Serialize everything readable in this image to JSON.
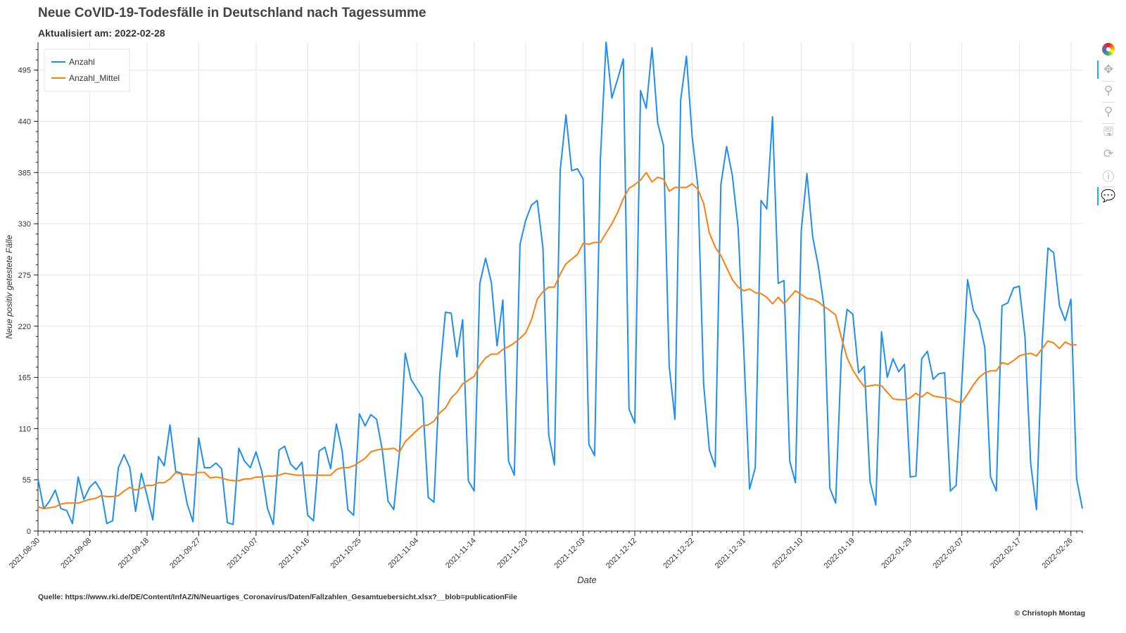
{
  "title": "Neue CoVID-19-Todesfälle in Deutschland nach Tagessumme",
  "subtitle": "Aktualisiert am: 2022-02-28",
  "source": "Quelle: https://www.rki.de/DE/Content/InfAZ/N/Neuartiges_Coronavirus/Daten/Fallzahlen_Gesamtuebersicht.xlsx?__blob=publicationFile",
  "credit": "© Christoph Montag",
  "toolbar": {
    "tools": [
      "bokeh-logo-icon",
      "pan-icon",
      "box-zoom-icon",
      "wheel-zoom-icon",
      "save-icon",
      "reset-icon",
      "help-icon",
      "hover-icon"
    ]
  },
  "chart_data": {
    "type": "line",
    "xlabel": "Date",
    "ylabel": "Neue positiv getestete Fälle",
    "x_start": "2021-08-30",
    "x_end": "2022-02-27",
    "xlim": [
      "2021-08-30",
      "2022-02-28"
    ],
    "ylim": [
      0,
      525
    ],
    "y_ticks": [
      0,
      55,
      110,
      165,
      220,
      275,
      330,
      385,
      440,
      495
    ],
    "x_ticks": [
      "2021-08-30",
      "2021-09-08",
      "2021-09-18",
      "2021-09-27",
      "2021-10-07",
      "2021-10-16",
      "2021-10-25",
      "2021-11-04",
      "2021-11-14",
      "2021-11-23",
      "2021-12-03",
      "2021-12-12",
      "2021-12-22",
      "2021-12-31",
      "2022-01-10",
      "2022-01-19",
      "2022-01-29",
      "2022-02-07",
      "2022-02-17",
      "2022-02-26"
    ],
    "grid": true,
    "legend_position": "top-left",
    "series": [
      {
        "name": "Anzahl",
        "color": "#1f8ef1",
        "values": [
          56,
          24,
          32,
          44,
          24,
          22,
          8,
          58,
          34,
          47,
          53,
          43,
          8,
          11,
          68,
          82,
          68,
          21,
          62,
          38,
          12,
          80,
          70,
          114,
          64,
          62,
          29,
          10,
          100,
          68,
          68,
          73,
          67,
          9,
          7,
          89,
          75,
          68,
          85,
          64,
          24,
          7,
          87,
          91,
          72,
          66,
          74,
          17,
          11,
          86,
          90,
          67,
          115,
          86,
          23,
          17,
          126,
          113,
          125,
          120,
          87,
          32,
          23,
          85,
          191,
          163,
          153,
          143,
          36,
          31,
          167,
          235,
          234,
          187,
          227,
          54,
          43,
          266,
          293,
          267,
          199,
          248,
          75,
          60,
          308,
          334,
          350,
          355,
          304,
          103,
          71,
          387,
          447,
          387,
          389,
          378,
          93,
          81,
          399,
          525,
          465,
          485,
          507,
          131,
          116,
          473,
          454,
          519,
          438,
          414,
          177,
          120,
          463,
          510,
          424,
          370,
          158,
          87,
          69,
          372,
          413,
          382,
          326,
          194,
          45,
          68,
          355,
          346,
          445,
          266,
          269,
          75,
          52,
          322,
          384,
          316,
          284,
          240,
          46,
          30,
          189,
          238,
          233,
          170,
          177,
          53,
          28,
          214,
          165,
          185,
          171,
          179,
          58,
          59,
          185,
          193,
          163,
          169,
          170,
          43,
          49,
          160,
          270,
          237,
          226,
          197,
          58,
          43,
          242,
          245,
          261,
          263,
          208,
          72,
          23,
          203,
          304,
          299,
          242,
          226,
          249,
          56,
          24
        ],
        "moving_average": false
      },
      {
        "name": "Anzahl_Mittel",
        "color": "#ff7f0e",
        "values": [
          26,
          24,
          25,
          26,
          29,
          30,
          30,
          30,
          32,
          34,
          35,
          38,
          37,
          37,
          38,
          43,
          47,
          44,
          46,
          49,
          49,
          52,
          52,
          56,
          63,
          61,
          61,
          60,
          63,
          63,
          57,
          58,
          57,
          55,
          54,
          54,
          56,
          56,
          58,
          58,
          59,
          59,
          60,
          62,
          61,
          60,
          60,
          60,
          60,
          60,
          60,
          60,
          66,
          68,
          68,
          70,
          74,
          78,
          85,
          87,
          88,
          88,
          89,
          85,
          96,
          102,
          108,
          113,
          114,
          118,
          127,
          132,
          143,
          149,
          158,
          162,
          166,
          178,
          186,
          190,
          190,
          195,
          198,
          202,
          207,
          213,
          227,
          249,
          257,
          262,
          262,
          276,
          287,
          292,
          297,
          309,
          308,
          310,
          310,
          320,
          330,
          342,
          357,
          368,
          372,
          377,
          385,
          375,
          380,
          378,
          365,
          369,
          369,
          369,
          373,
          367,
          352,
          320,
          305,
          296,
          283,
          270,
          262,
          258,
          260,
          256,
          255,
          251,
          244,
          251,
          244,
          251,
          258,
          254,
          250,
          249,
          246,
          241,
          237,
          232,
          208,
          186,
          173,
          163,
          155,
          156,
          157,
          156,
          149,
          142,
          141,
          141,
          143,
          148,
          144,
          149,
          145,
          144,
          143,
          142,
          139,
          138,
          147,
          157,
          165,
          170,
          172,
          172,
          181,
          179,
          183,
          188,
          190,
          191,
          188,
          196,
          204,
          202,
          196,
          203,
          200,
          200
        ],
        "moving_average": true
      }
    ]
  }
}
